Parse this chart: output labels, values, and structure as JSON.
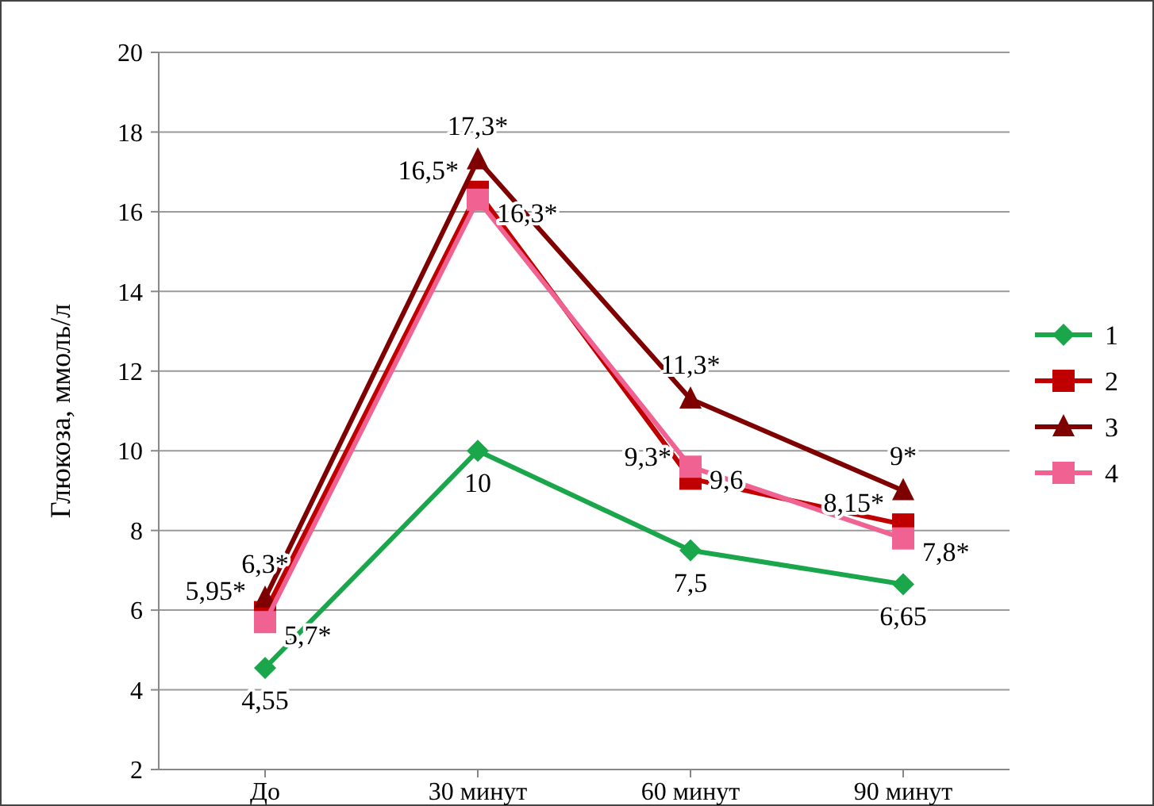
{
  "chart_data": {
    "type": "line",
    "ylabel": "Глюкоза, ммоль/л",
    "categories": [
      "До",
      "30 минут",
      "60 минут",
      "90 минут"
    ],
    "ylim": [
      2,
      20
    ],
    "yticks": [
      2,
      4,
      6,
      8,
      10,
      12,
      14,
      16,
      18,
      20
    ],
    "grid": "y",
    "legend": "right",
    "series": [
      {
        "name": "1",
        "color": "#1aa64a",
        "marker": "diamond",
        "values": [
          4.55,
          10,
          7.5,
          6.65
        ],
        "value_labels": [
          "4,55",
          "10",
          "7,5",
          "6,65"
        ]
      },
      {
        "name": "2",
        "color": "#c00000",
        "marker": "square",
        "values": [
          5.95,
          16.5,
          9.3,
          8.15
        ],
        "value_labels": [
          "5,95*",
          "16,5*",
          "9,3*",
          "8,15*"
        ]
      },
      {
        "name": "3",
        "color": "#7f0000",
        "marker": "triangle",
        "values": [
          6.3,
          17.3,
          11.3,
          9
        ],
        "value_labels": [
          "6,3*",
          "17,3*",
          "11,3*",
          "9*"
        ]
      },
      {
        "name": "4",
        "color": "#f06292",
        "marker": "square",
        "values": [
          5.7,
          16.3,
          9.6,
          7.8
        ],
        "value_labels": [
          "5,7*",
          "16,3*",
          "9,6",
          "7,8*"
        ]
      }
    ]
  }
}
